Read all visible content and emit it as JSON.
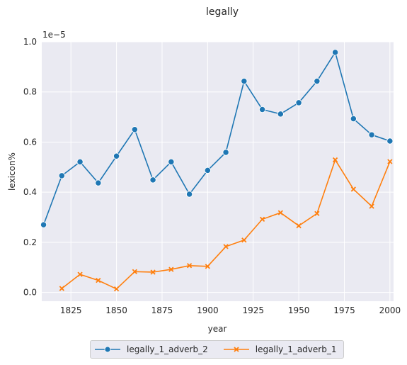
{
  "chart_data": {
    "type": "line",
    "title": "legally",
    "xlabel": "year",
    "ylabel": "lexicon%",
    "scale_note": "1e−5",
    "xlim": [
      1809,
      2002
    ],
    "ylim": [
      -0.035,
      1.0
    ],
    "grid": true,
    "legend_position": "bottom-center",
    "xticks": [
      1825,
      1850,
      1875,
      1900,
      1925,
      1950,
      1975,
      2000
    ],
    "xtick_labels": [
      "1825",
      "1850",
      "1875",
      "1900",
      "1925",
      "1950",
      "1975",
      "2000"
    ],
    "yticks": [
      0.0,
      0.2,
      0.4,
      0.6,
      0.8,
      1.0
    ],
    "ytick_labels": [
      "0.0",
      "0.2",
      "0.4",
      "0.6",
      "0.8",
      "1.0"
    ],
    "series": [
      {
        "name": "legally_1_adverb_2",
        "color": "#1f77b4",
        "marker": "circle",
        "x": [
          1810,
          1820,
          1830,
          1840,
          1850,
          1860,
          1870,
          1880,
          1890,
          1900,
          1910,
          1920,
          1930,
          1940,
          1950,
          1960,
          1970,
          1980,
          1990,
          2000
        ],
        "values": [
          0.27,
          0.466,
          0.521,
          0.437,
          0.544,
          0.65,
          0.449,
          0.521,
          0.392,
          0.487,
          0.559,
          0.843,
          0.73,
          0.712,
          0.757,
          0.843,
          0.958,
          0.693,
          0.629,
          0.604
        ]
      },
      {
        "name": "legally_1_adverb_1",
        "color": "#ff7f0e",
        "marker": "x",
        "x": [
          1820,
          1830,
          1840,
          1850,
          1860,
          1870,
          1880,
          1890,
          1900,
          1910,
          1920,
          1930,
          1940,
          1950,
          1960,
          1970,
          1980,
          1990,
          2000
        ],
        "values": [
          0.016,
          0.072,
          0.048,
          0.014,
          0.083,
          0.081,
          0.092,
          0.107,
          0.104,
          0.183,
          0.209,
          0.292,
          0.318,
          0.266,
          0.315,
          0.529,
          0.412,
          0.344,
          0.522
        ]
      }
    ]
  }
}
